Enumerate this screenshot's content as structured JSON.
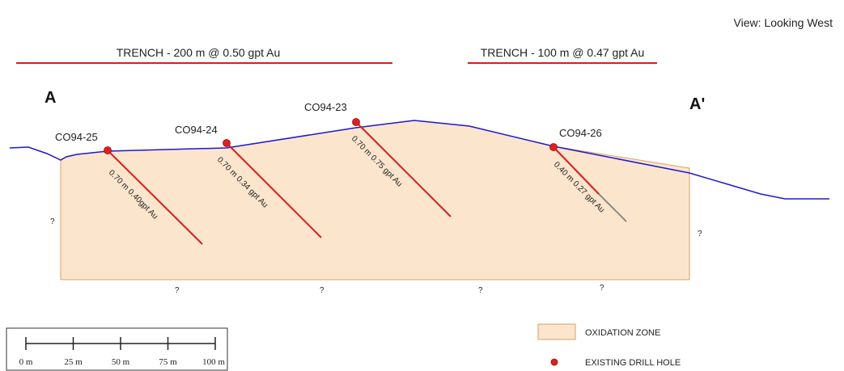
{
  "view_label": "View: Looking West",
  "section": {
    "start_label": "A",
    "end_label": "A'"
  },
  "trenches": [
    {
      "label": "TRENCH - 200 m @ 0.50 gpt Au"
    },
    {
      "label": "TRENCH - 100 m @ 0.47 gpt Au"
    }
  ],
  "drill_holes": [
    {
      "name": "CO94-25",
      "interval": "0.70 m 0.40gpt Au"
    },
    {
      "name": "CO94-24",
      "interval": "0.70 m 0.34 gpt Au"
    },
    {
      "name": "CO94-23",
      "interval": "0.70 m 0.75 gpt Au"
    },
    {
      "name": "CO94-26",
      "interval": "0.40 m 0.27 gpt Au"
    }
  ],
  "uncertain_marker": "?",
  "legend": {
    "oxidation_zone": "OXIDATION ZONE",
    "existing_drill_hole": "EXISTING DRILL HOLE"
  },
  "scale_bar": {
    "ticks": [
      "0 m",
      "25 m",
      "50 m",
      "75 m",
      "100 m"
    ]
  },
  "colors": {
    "topography": "#1a1ad0",
    "oxidation_fill": "#fce5cd",
    "oxidation_border": "#d9a066",
    "drill_trace": "#d81e1e",
    "drill_collar": "#e02020",
    "trench": "#d81e1e"
  }
}
